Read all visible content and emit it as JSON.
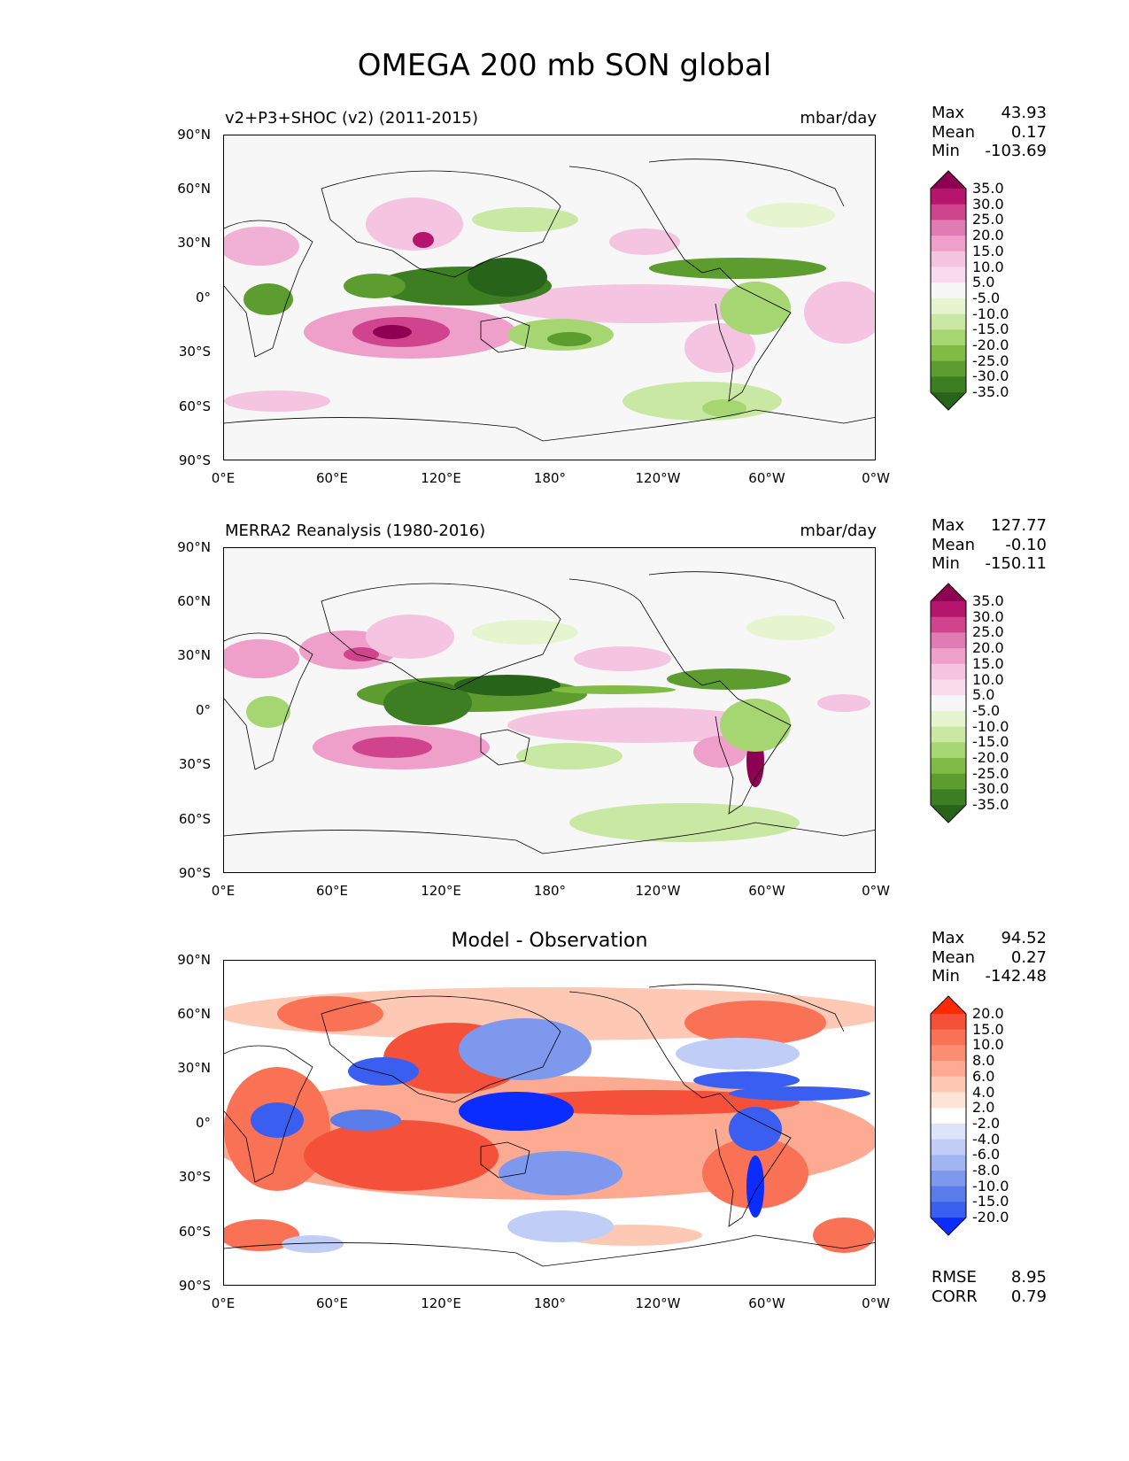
{
  "title": "OMEGA 200 mb SON global",
  "lat_labels": [
    "90°N",
    "60°N",
    "30°N",
    "0°",
    "30°S",
    "60°S",
    "90°S"
  ],
  "lon_labels": [
    "0°E",
    "60°E",
    "120°E",
    "180°",
    "120°W",
    "60°W",
    "0°W"
  ],
  "panels": [
    {
      "left_title": "v2+P3+SHOC (v2) (2011-2015)",
      "right_title": "mbar/day",
      "center_title": "",
      "stats": [
        {
          "label": "Max",
          "value": "43.93"
        },
        {
          "label": "Mean",
          "value": "0.17"
        },
        {
          "label": "Min",
          "value": "-103.69"
        }
      ],
      "levels": [
        "35.0",
        "30.0",
        "25.0",
        "20.0",
        "15.0",
        "10.0",
        "5.0",
        "-5.0",
        "-10.0",
        "-15.0",
        "-20.0",
        "-25.0",
        "-30.0",
        "-35.0"
      ],
      "colors": [
        "#8e0152",
        "#b5156d",
        "#d0438d",
        "#e17bb3",
        "#ee9fca",
        "#f5c4e0",
        "#f9dcec",
        "#f7f7f7",
        "#e6f5d0",
        "#c9e8a4",
        "#a6d672",
        "#80bc45",
        "#5d9d30",
        "#3e7e22",
        "#276419"
      ],
      "footer": []
    },
    {
      "left_title": "MERRA2 Reanalysis (1980-2016)",
      "right_title": "mbar/day",
      "center_title": "",
      "stats": [
        {
          "label": "Max",
          "value": "127.77"
        },
        {
          "label": "Mean",
          "value": "-0.10"
        },
        {
          "label": "Min",
          "value": "-150.11"
        }
      ],
      "levels": [
        "35.0",
        "30.0",
        "25.0",
        "20.0",
        "15.0",
        "10.0",
        "5.0",
        "-5.0",
        "-10.0",
        "-15.0",
        "-20.0",
        "-25.0",
        "-30.0",
        "-35.0"
      ],
      "colors": [
        "#8e0152",
        "#b5156d",
        "#d0438d",
        "#e17bb3",
        "#ee9fca",
        "#f5c4e0",
        "#f9dcec",
        "#f7f7f7",
        "#e6f5d0",
        "#c9e8a4",
        "#a6d672",
        "#80bc45",
        "#5d9d30",
        "#3e7e22",
        "#276419"
      ],
      "footer": []
    },
    {
      "left_title": "",
      "right_title": "",
      "center_title": "Model - Observation",
      "stats": [
        {
          "label": "Max",
          "value": "94.52"
        },
        {
          "label": "Mean",
          "value": "0.27"
        },
        {
          "label": "Min",
          "value": "-142.48"
        }
      ],
      "levels": [
        "20.0",
        "15.0",
        "10.0",
        "8.0",
        "6.0",
        "4.0",
        "2.0",
        "-2.0",
        "-4.0",
        "-6.0",
        "-8.0",
        "-10.0",
        "-15.0",
        "-20.0"
      ],
      "colors": [
        "#ff2a00",
        "#f5503a",
        "#fa7256",
        "#fb8d72",
        "#fcab92",
        "#fdc8b4",
        "#fee3d7",
        "#ffffff",
        "#dce4fa",
        "#c0cdf7",
        "#a2b5f3",
        "#7e98ee",
        "#5a7bea",
        "#3a5ff0",
        "#0a2cff"
      ],
      "footer": [
        {
          "label": "RMSE",
          "value": "8.95"
        },
        {
          "label": "CORR",
          "value": "0.79"
        }
      ]
    }
  ]
}
